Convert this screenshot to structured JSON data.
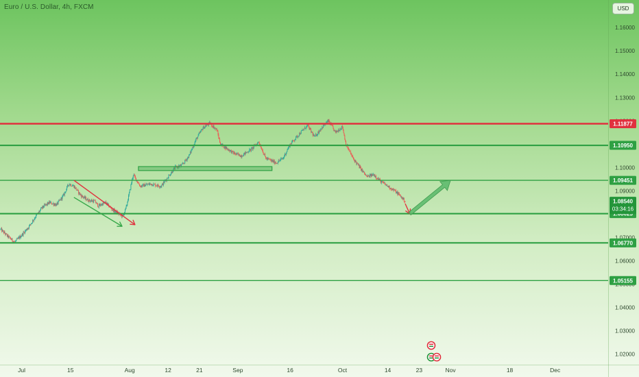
{
  "title": "Euro / U.S. Dollar, 4h, FXCM",
  "currency_button": "USD",
  "chart_data": {
    "type": "candlestick",
    "instrument": "Euro / U.S. Dollar",
    "interval": "4h",
    "source": "FXCM",
    "ylim": [
      1.0155,
      1.1718
    ],
    "y_ticks": [
      1.02,
      1.03,
      1.04,
      1.05,
      1.06,
      1.07,
      1.08,
      1.09,
      1.1,
      1.11,
      1.12,
      1.13,
      1.14,
      1.15,
      1.16
    ],
    "y_tick_labels": [
      "1.02000",
      "1.03000",
      "1.04000",
      "1.05000",
      "1.06000",
      "1.07000",
      "1.08000",
      "1.09000",
      "1.10000",
      "1.11000",
      "1.12000",
      "1.13000",
      "1.14000",
      "1.15000",
      "1.16000"
    ],
    "x_ticks": [
      {
        "label": "Jul",
        "day": 0
      },
      {
        "label": "15",
        "day": 14
      },
      {
        "label": "Aug",
        "day": 31
      },
      {
        "label": "12",
        "day": 42
      },
      {
        "label": "21",
        "day": 51
      },
      {
        "label": "Sep",
        "day": 62
      },
      {
        "label": "16",
        "day": 77
      },
      {
        "label": "Oct",
        "day": 92
      },
      {
        "label": "14",
        "day": 105
      },
      {
        "label": "23",
        "day": 114
      },
      {
        "label": "Nov",
        "day": 123
      },
      {
        "label": "18",
        "day": 140
      },
      {
        "label": "Dec",
        "day": 153
      }
    ],
    "x_range_days": [
      -6.2,
      168.2
    ],
    "last_day": 110,
    "price_path": [
      [
        -6,
        1.0735
      ],
      [
        -4,
        1.0705
      ],
      [
        -2,
        1.068
      ],
      [
        0,
        1.071
      ],
      [
        2,
        1.0745
      ],
      [
        4,
        1.079
      ],
      [
        6,
        1.083
      ],
      [
        8,
        1.085
      ],
      [
        10,
        1.084
      ],
      [
        12,
        1.088
      ],
      [
        13.5,
        1.093
      ],
      [
        15,
        1.092
      ],
      [
        17,
        1.088
      ],
      [
        19,
        1.086
      ],
      [
        21,
        1.0855
      ],
      [
        22,
        1.0835
      ],
      [
        24,
        1.085
      ],
      [
        26,
        1.082
      ],
      [
        28,
        1.08
      ],
      [
        29,
        1.079
      ],
      [
        30,
        1.083
      ],
      [
        31,
        1.09
      ],
      [
        32,
        1.097
      ],
      [
        34,
        1.092
      ],
      [
        37,
        1.093
      ],
      [
        40,
        1.092
      ],
      [
        42,
        1.096
      ],
      [
        44,
        1.1
      ],
      [
        46,
        1.101
      ],
      [
        48,
        1.105
      ],
      [
        50,
        1.112
      ],
      [
        52,
        1.117
      ],
      [
        54,
        1.119
      ],
      [
        56,
        1.116
      ],
      [
        57,
        1.11
      ],
      [
        59,
        1.108
      ],
      [
        61,
        1.106
      ],
      [
        63,
        1.105
      ],
      [
        66,
        1.108
      ],
      [
        68,
        1.111
      ],
      [
        70,
        1.104
      ],
      [
        73,
        1.102
      ],
      [
        75,
        1.104
      ],
      [
        77,
        1.11
      ],
      [
        80,
        1.115
      ],
      [
        82,
        1.118
      ],
      [
        84,
        1.113
      ],
      [
        86,
        1.117
      ],
      [
        88,
        1.12
      ],
      [
        90,
        1.115
      ],
      [
        92,
        1.1175
      ],
      [
        93,
        1.11
      ],
      [
        95,
        1.104
      ],
      [
        97,
        1.1
      ],
      [
        99,
        1.096
      ],
      [
        101,
        1.097
      ],
      [
        103,
        1.094
      ],
      [
        105,
        1.092
      ],
      [
        107,
        1.09
      ],
      [
        108.5,
        1.088
      ],
      [
        110,
        1.0854
      ]
    ],
    "price_levels": [
      {
        "value": 1.11877,
        "label": "1.11877",
        "color": "#e0313e",
        "width": 2.4
      },
      {
        "value": 1.1095,
        "label": "1.10950",
        "color": "#2ea043",
        "width": 2.2
      },
      {
        "value": 1.09451,
        "label": "1.09451",
        "color": "#2ea043",
        "width": 1.4
      },
      {
        "value": 1.08023,
        "label": "1.08023",
        "color": "#2ea043",
        "width": 2.2
      },
      {
        "value": 1.0677,
        "label": "1.06770",
        "color": "#2ea043",
        "width": 2.2
      },
      {
        "value": 1.05155,
        "label": "1.05155",
        "color": "#2ea043",
        "width": 1.4
      }
    ],
    "current_price": {
      "value": 1.0854,
      "label": "1.08540",
      "countdown": "03:34:16",
      "color": "#23953a"
    },
    "drawings": [
      {
        "kind": "arrow",
        "color": "#e0313e",
        "from": [
          15,
          1.0945
        ],
        "to": [
          32.5,
          1.0755
        ]
      },
      {
        "kind": "arrow",
        "color": "#37a84a",
        "from": [
          15,
          1.0872
        ],
        "to": [
          28.8,
          1.0748
        ]
      },
      {
        "kind": "rectangle",
        "color": "#2ea043",
        "from": [
          33.5,
          1.1004
        ],
        "to": [
          71.8,
          1.0987
        ]
      },
      {
        "kind": "arrow",
        "color": "#e0313e",
        "from": [
          110,
          1.0845
        ],
        "to": [
          111.3,
          1.0802
        ]
      },
      {
        "kind": "thick-arrow",
        "color": "#59b86a",
        "from": [
          111.3,
          1.0802
        ],
        "to": [
          123,
          1.0945
        ]
      }
    ],
    "colors": {
      "up": "#26a69a",
      "down": "#ef5350",
      "label_bg": "#2ea043",
      "label_bg_red": "#e0313e"
    },
    "event_markers": [
      "flag-icon",
      "flag-icon",
      "flag-icon"
    ]
  }
}
